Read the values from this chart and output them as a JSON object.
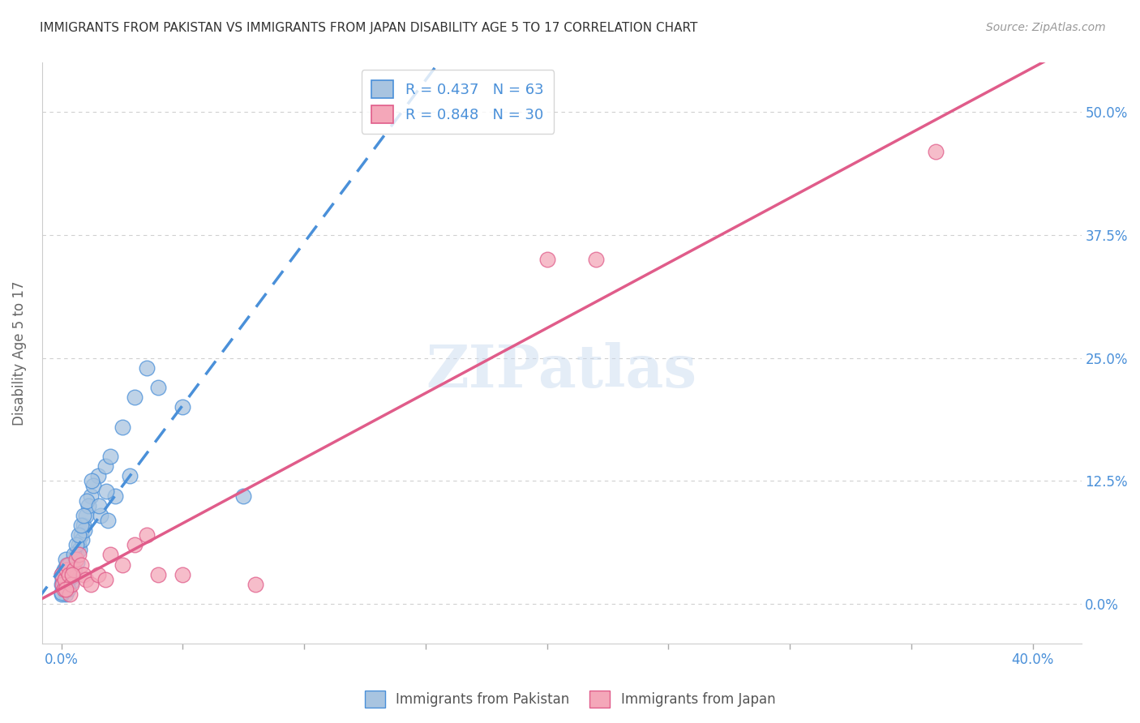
{
  "title": "IMMIGRANTS FROM PAKISTAN VS IMMIGRANTS FROM JAPAN DISABILITY AGE 5 TO 17 CORRELATION CHART",
  "source": "Source: ZipAtlas.com",
  "ylabel": "Disability Age 5 to 17",
  "yticks_labels": [
    "0.0%",
    "12.5%",
    "25.0%",
    "37.5%",
    "50.0%"
  ],
  "ytick_vals": [
    0.0,
    12.5,
    25.0,
    37.5,
    50.0
  ],
  "xtick_vals": [
    0,
    5,
    10,
    15,
    20,
    25,
    30,
    35,
    40
  ],
  "xlim": [
    -0.8,
    42.0
  ],
  "ylim": [
    -4.0,
    55.0
  ],
  "legend_r1": "R = 0.437   N = 63",
  "legend_r2": "R = 0.848   N = 30",
  "pakistan_color": "#a8c4e0",
  "japan_color": "#f4a7b9",
  "pakistan_line_color": "#4a90d9",
  "japan_line_color": "#e05c8a",
  "watermark": "ZIPatlas",
  "pakistan_points_x": [
    0.0,
    0.1,
    0.2,
    0.15,
    0.3,
    0.0,
    0.05,
    0.1,
    0.2,
    0.08,
    0.12,
    0.18,
    0.25,
    0.35,
    0.4,
    0.5,
    0.6,
    0.7,
    0.8,
    0.9,
    1.0,
    1.2,
    1.5,
    1.8,
    2.0,
    2.5,
    3.0,
    3.5,
    4.0,
    5.0,
    0.05,
    0.15,
    0.22,
    0.28,
    0.45,
    0.55,
    0.65,
    0.75,
    0.85,
    0.95,
    1.1,
    1.3,
    1.6,
    1.9,
    2.2,
    2.8,
    0.0,
    0.02,
    0.07,
    0.13,
    0.19,
    0.32,
    0.42,
    0.52,
    0.62,
    0.72,
    0.82,
    0.92,
    1.05,
    1.25,
    1.55,
    1.85,
    7.5
  ],
  "pakistan_points_y": [
    2.0,
    1.5,
    1.8,
    2.2,
    2.5,
    3.0,
    2.8,
    3.5,
    4.0,
    3.2,
    2.0,
    1.0,
    2.5,
    3.8,
    2.2,
    4.5,
    5.0,
    6.0,
    7.0,
    8.0,
    9.0,
    11.0,
    13.0,
    14.0,
    15.0,
    18.0,
    21.0,
    24.0,
    22.0,
    20.0,
    2.5,
    3.0,
    2.0,
    1.5,
    2.8,
    3.5,
    4.2,
    5.5,
    6.5,
    7.5,
    10.0,
    12.0,
    9.0,
    8.5,
    11.0,
    13.0,
    1.0,
    1.2,
    2.8,
    3.2,
    4.5,
    4.0,
    3.0,
    5.0,
    6.0,
    7.0,
    8.0,
    9.0,
    10.5,
    12.5,
    10.0,
    11.5,
    11.0
  ],
  "japan_points_x": [
    0.0,
    0.05,
    0.1,
    0.15,
    0.2,
    0.25,
    0.3,
    0.35,
    0.4,
    0.5,
    0.6,
    0.7,
    0.8,
    0.9,
    1.0,
    1.2,
    1.5,
    2.0,
    2.5,
    3.0,
    3.5,
    5.0,
    20.0,
    22.0,
    4.0,
    8.0,
    36.0,
    0.18,
    0.45,
    1.8
  ],
  "japan_points_y": [
    3.0,
    2.0,
    1.5,
    2.5,
    3.5,
    4.0,
    3.0,
    1.0,
    2.0,
    3.5,
    4.5,
    5.0,
    4.0,
    3.0,
    2.5,
    2.0,
    3.0,
    5.0,
    4.0,
    6.0,
    7.0,
    3.0,
    35.0,
    35.0,
    3.0,
    2.0,
    46.0,
    1.5,
    3.0,
    2.5
  ],
  "background_color": "#ffffff",
  "grid_color": "#d0d0d0",
  "tick_label_color": "#4a90d9",
  "title_color": "#333333"
}
